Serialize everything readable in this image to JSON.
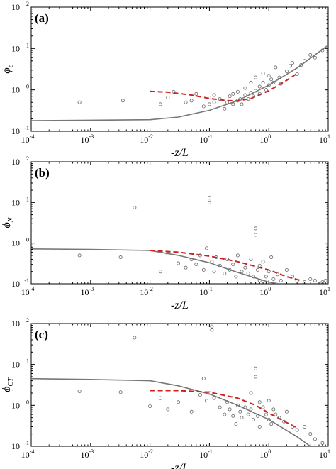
{
  "figure": {
    "xlabel": "-z/L",
    "colors": {
      "model_line": "#777777",
      "fit_line": "#d11f1f",
      "points": "#666666",
      "axes": "#000000"
    }
  },
  "chart_data": [
    {
      "type": "scatter",
      "panel_label": "(a)",
      "ylabel_main": "ϕ",
      "ylabel_sub": "ε",
      "xlabel": "-z/L",
      "x_scale": "log",
      "y_scale": "log",
      "xlim": [
        0.0001,
        10
      ],
      "ylim": [
        0.1,
        100
      ],
      "x_tick_labels": [
        [
          "10",
          "-4"
        ],
        [
          "10",
          "-3"
        ],
        [
          "10",
          "-2"
        ],
        [
          "10",
          "-1"
        ],
        [
          "10",
          "0"
        ],
        [
          "10",
          "1"
        ]
      ],
      "y_tick_labels": [
        [
          "10",
          "-1"
        ],
        [
          "10",
          "0"
        ],
        [
          "10",
          "1"
        ],
        [
          "10",
          "2"
        ]
      ],
      "grid": false,
      "series": [
        {
          "kind": "line",
          "style": "solid",
          "color": "#777777",
          "x": [
            0.0001,
            0.01,
            0.03,
            0.1,
            0.3,
            1,
            3,
            10
          ],
          "y": [
            0.18,
            0.19,
            0.22,
            0.32,
            0.55,
            1.3,
            3.4,
            12
          ]
        },
        {
          "kind": "line",
          "style": "dashed",
          "color": "#d11f1f",
          "x": [
            0.01,
            0.02,
            0.05,
            0.1,
            0.2,
            0.3,
            0.5,
            1,
            2,
            3
          ],
          "y": [
            0.92,
            0.88,
            0.75,
            0.62,
            0.55,
            0.54,
            0.62,
            0.95,
            1.7,
            2.5
          ]
        },
        {
          "kind": "points",
          "color": "#666666",
          "x": [
            0.00065,
            0.0035,
            0.015,
            0.02,
            0.025,
            0.04,
            0.05,
            0.06,
            0.08,
            0.1,
            0.1,
            0.12,
            0.12,
            0.15,
            0.18,
            0.2,
            0.22,
            0.25,
            0.25,
            0.3,
            0.3,
            0.33,
            0.35,
            0.4,
            0.4,
            0.45,
            0.5,
            0.5,
            0.55,
            0.6,
            0.6,
            0.7,
            0.7,
            0.8,
            0.8,
            0.9,
            1,
            1,
            1.1,
            1.2,
            1.3,
            1.5,
            1.6,
            2,
            2.3,
            2.5,
            3,
            3.5,
            4,
            5,
            6,
            8
          ],
          "y": [
            0.5,
            0.55,
            0.45,
            0.65,
            0.9,
            0.5,
            0.55,
            0.8,
            0.4,
            0.45,
            0.65,
            0.5,
            0.75,
            0.6,
            0.35,
            0.5,
            0.7,
            0.45,
            0.8,
            0.55,
            0.9,
            0.6,
            0.45,
            0.75,
            1.1,
            0.6,
            0.85,
            1.5,
            0.7,
            0.95,
            2,
            1.2,
            0.8,
            1.5,
            2.5,
            1,
            1.3,
            2.2,
            1.8,
            1.5,
            3.5,
            2,
            1.4,
            2.8,
            3.8,
            4.5,
            2.4,
            4,
            5,
            7,
            6,
            9
          ]
        }
      ]
    },
    {
      "type": "scatter",
      "panel_label": "(b)",
      "ylabel_main": "ϕ",
      "ylabel_sub": "N",
      "xlabel": "-z/L",
      "x_scale": "log",
      "y_scale": "log",
      "xlim": [
        0.0001,
        10
      ],
      "ylim": [
        0.1,
        100
      ],
      "x_tick_labels": [
        [
          "10",
          "-4"
        ],
        [
          "10",
          "-3"
        ],
        [
          "10",
          "-2"
        ],
        [
          "10",
          "-1"
        ],
        [
          "10",
          "0"
        ],
        [
          "10",
          "1"
        ]
      ],
      "y_tick_labels": [
        [
          "10",
          "-1"
        ],
        [
          "10",
          "0"
        ],
        [
          "10",
          "1"
        ],
        [
          "10",
          "2"
        ]
      ],
      "grid": false,
      "series": [
        {
          "kind": "line",
          "style": "solid",
          "color": "#777777",
          "x": [
            0.0001,
            0.001,
            0.01,
            0.03,
            0.1,
            0.3,
            1,
            1.5
          ],
          "y": [
            0.72,
            0.7,
            0.66,
            0.5,
            0.33,
            0.19,
            0.11,
            0.1
          ]
        },
        {
          "kind": "line",
          "style": "dashed",
          "color": "#d11f1f",
          "x": [
            0.01,
            0.03,
            0.1,
            0.3,
            1,
            2,
            3.5
          ],
          "y": [
            0.66,
            0.6,
            0.48,
            0.35,
            0.22,
            0.15,
            0.12
          ]
        },
        {
          "kind": "points",
          "color": "#666666",
          "x": [
            0.00065,
            0.0032,
            0.0055,
            0.015,
            0.02,
            0.03,
            0.04,
            0.05,
            0.06,
            0.07,
            0.08,
            0.09,
            0.1,
            0.1,
            0.11,
            0.12,
            0.13,
            0.15,
            0.18,
            0.2,
            0.22,
            0.25,
            0.28,
            0.3,
            0.35,
            0.4,
            0.45,
            0.5,
            0.55,
            0.6,
            0.6,
            0.65,
            0.7,
            0.7,
            0.8,
            0.9,
            1,
            1.1,
            1.2,
            1.4,
            1.6,
            2,
            2.5,
            3,
            4,
            5,
            6,
            8,
            9
          ],
          "y": [
            0.5,
            0.45,
            7.5,
            0.2,
            0.55,
            0.32,
            0.25,
            0.4,
            0.3,
            0.5,
            0.22,
            0.75,
            13,
            10,
            0.35,
            0.2,
            0.45,
            0.28,
            0.18,
            0.4,
            0.22,
            0.3,
            0.15,
            0.5,
            0.2,
            0.25,
            0.18,
            0.4,
            0.15,
            2.3,
            1.6,
            0.22,
            0.12,
            0.28,
            0.35,
            0.15,
            0.2,
            0.45,
            0.13,
            0.17,
            0.12,
            0.22,
            0.15,
            0.12,
            0.11,
            0.13,
            0.12,
            0.11,
            0.12
          ]
        }
      ]
    },
    {
      "type": "scatter",
      "panel_label": "(c)",
      "ylabel_main": "ϕ",
      "ylabel_sub": "CT",
      "xlabel": "-z/L",
      "x_scale": "log",
      "y_scale": "log",
      "xlim": [
        0.0001,
        10
      ],
      "ylim": [
        0.1,
        100
      ],
      "x_tick_labels": [
        [
          "10",
          "-4"
        ],
        [
          "10",
          "-3"
        ],
        [
          "10",
          "-2"
        ],
        [
          "10",
          "-1"
        ],
        [
          "10",
          "0"
        ],
        [
          "10",
          "1"
        ]
      ],
      "y_tick_labels": [
        [
          "10",
          "-1"
        ],
        [
          "10",
          "0"
        ],
        [
          "10",
          "1"
        ],
        [
          "10",
          "2"
        ]
      ],
      "grid": false,
      "series": [
        {
          "kind": "line",
          "style": "solid",
          "color": "#777777",
          "x": [
            0.0001,
            0.001,
            0.01,
            0.03,
            0.1,
            0.3,
            1,
            3,
            5
          ],
          "y": [
            4.5,
            4.3,
            4,
            3,
            1.9,
            1,
            0.45,
            0.17,
            0.1
          ]
        },
        {
          "kind": "line",
          "style": "dashed",
          "color": "#d11f1f",
          "x": [
            0.01,
            0.03,
            0.1,
            0.3,
            0.6,
            1,
            2,
            3
          ],
          "y": [
            2.3,
            2.3,
            2.1,
            1.5,
            1,
            0.65,
            0.38,
            0.28
          ]
        },
        {
          "kind": "points",
          "color": "#666666",
          "x": [
            0.00065,
            0.0032,
            0.0055,
            0.01,
            0.015,
            0.02,
            0.03,
            0.05,
            0.07,
            0.08,
            0.09,
            0.1,
            0.11,
            0.11,
            0.12,
            0.15,
            0.18,
            0.2,
            0.22,
            0.25,
            0.28,
            0.3,
            0.33,
            0.35,
            0.4,
            0.45,
            0.5,
            0.5,
            0.55,
            0.6,
            0.6,
            0.65,
            0.7,
            0.7,
            0.8,
            0.9,
            1,
            1,
            1.1,
            1.2,
            1.3,
            1.5,
            1.8,
            2,
            2.5,
            3,
            4,
            5,
            6,
            8
          ],
          "y": [
            2.2,
            2.1,
            45,
            0.95,
            1.5,
            0.8,
            1.2,
            0.7,
            1.8,
            4.5,
            1.3,
            2,
            85,
            70,
            1.5,
            0.9,
            0.6,
            1.2,
            0.8,
            0.55,
            0.35,
            1,
            0.7,
            0.5,
            0.9,
            0.6,
            2,
            0.8,
            0.45,
            8,
            5,
            0.55,
            0.3,
            1.2,
            0.9,
            0.6,
            0.45,
            1.3,
            0.35,
            0.8,
            0.6,
            0.5,
            0.4,
            0.7,
            0.3,
            0.25,
            0.3,
            0.2,
            0.15,
            0.12
          ]
        }
      ]
    }
  ]
}
